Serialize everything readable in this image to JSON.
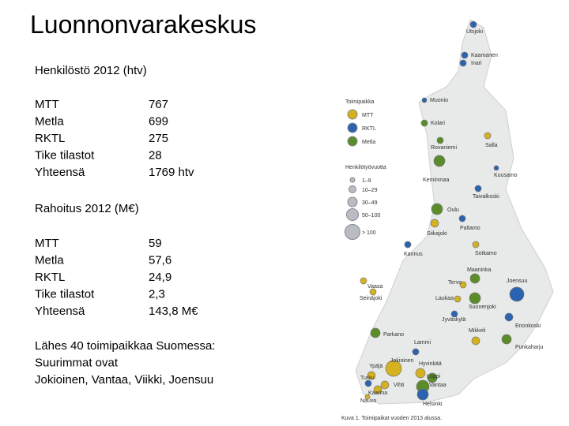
{
  "header": {
    "title": "Luonnonvarakeskus"
  },
  "staff": {
    "heading": "Henkilöstö 2012 (htv)",
    "rows": [
      [
        "MTT",
        "767"
      ],
      [
        "Metla",
        "699"
      ],
      [
        "RKTL",
        "275"
      ],
      [
        "Tike tilastot",
        "28"
      ],
      [
        "Yhteensä",
        "1769 htv"
      ]
    ]
  },
  "funding": {
    "heading": "Rahoitus 2012 (M€)",
    "rows": [
      [
        "MTT",
        "59"
      ],
      [
        "Metla",
        "57,6"
      ],
      [
        "RKTL",
        "24,9"
      ],
      [
        "Tike tilastot",
        "2,3"
      ],
      [
        "Yhteensä",
        "143,8 M€"
      ]
    ]
  },
  "note": {
    "lines": [
      "Lähes 40 toimipaikkaa Suomessa:",
      "Suurimmat ovat",
      "Jokioinen, Vantaa, Viikki, Joensuu"
    ]
  },
  "map": {
    "legend": {
      "office_title": "Toimipaikka",
      "offices": [
        "MTT",
        "RKTL",
        "Metla"
      ],
      "staff_title": "Henkilötyövuotta",
      "sizes": [
        "1–9",
        "10–29",
        "30–49",
        "50–100",
        "> 100"
      ]
    },
    "places": [
      "Utsjoki",
      "Kaamanen",
      "Inari",
      "Muonio",
      "Kolari",
      "Rovaniemi",
      "Salla",
      "Keminmaa",
      "Kuusamo",
      "Taivalkoski",
      "Oulu",
      "Siikajoki",
      "Paltamo",
      "Sotkamo",
      "Kannus",
      "Maaninka",
      "Vaasa",
      "Seinäjoki",
      "Tervo",
      "Joensuu",
      "Laukaa",
      "Suonenjoki",
      "Jyväskylä",
      "Parkano",
      "Mikkeli",
      "Enonkoski",
      "Punkaharju",
      "Lammi",
      "Jokioinen",
      "Hyvinkää",
      "Ypäjä",
      "Loppi",
      "Turku",
      "Vantaa",
      "Vihti",
      "Kaarina",
      "Nauvo",
      "Helsinki"
    ],
    "caption": "Kuva 1. Toimipaikat vuoden 2013 alussa."
  }
}
